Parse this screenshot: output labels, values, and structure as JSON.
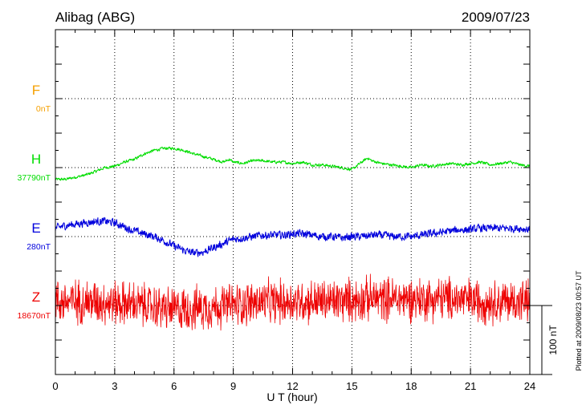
{
  "station": "Alibag (ABG)",
  "date": "2009/07/23",
  "plotted_note": "Plotted at 2009/08/23 00:57 UT",
  "scale_label": "100 nT",
  "chart_data": {
    "type": "line",
    "title": "Alibag (ABG)",
    "subtitle": "2009/07/23",
    "xlabel": "U T (hour)",
    "ylabel": "",
    "xlim": [
      0,
      24
    ],
    "x_ticks": [
      "0",
      "3",
      "6",
      "9",
      "12",
      "15",
      "18",
      "21",
      "24"
    ],
    "units_per_division_nT": 100,
    "grid": true,
    "series": [
      {
        "name": "F",
        "baseline_label": "0nT",
        "color": "#f5a000",
        "x": [],
        "y": []
      },
      {
        "name": "H",
        "baseline_label": "37790nT",
        "color": "#00dd00",
        "noise": 3,
        "x": [
          0,
          0.5,
          1,
          1.5,
          2,
          2.5,
          3,
          3.5,
          4,
          4.5,
          5,
          5.5,
          6,
          6.5,
          7,
          7.5,
          8,
          8.5,
          8.8,
          9,
          9.5,
          10,
          10.5,
          11,
          11.5,
          12,
          12.5,
          13,
          13.5,
          14,
          14.5,
          15,
          15.5,
          15.8,
          16,
          16.5,
          17,
          17.5,
          18,
          18.5,
          19,
          19.5,
          20,
          20.5,
          21,
          21.5,
          22,
          22.5,
          23,
          23.5,
          24
        ],
        "y": [
          -17,
          -17,
          -14,
          -11,
          -6,
          0,
          2,
          8,
          12,
          20,
          25,
          28,
          28,
          25,
          20,
          16,
          12,
          8,
          12,
          8,
          6,
          10,
          10,
          8,
          8,
          6,
          8,
          4,
          4,
          2,
          0,
          -3,
          8,
          14,
          10,
          6,
          4,
          2,
          0,
          4,
          2,
          4,
          6,
          4,
          6,
          8,
          4,
          6,
          8,
          4,
          2
        ]
      },
      {
        "name": "E",
        "baseline_label": "280nT",
        "color": "#0000dd",
        "noise": 8,
        "x": [
          0,
          0.5,
          1,
          1.5,
          2,
          2.5,
          3,
          3.5,
          4,
          4.5,
          5,
          5.5,
          6,
          6.5,
          7,
          7.5,
          8,
          8.5,
          9,
          9.5,
          10,
          10.5,
          11,
          11.5,
          12,
          12.5,
          13,
          13.5,
          14,
          14.5,
          15,
          15.5,
          16,
          16.5,
          17,
          17.5,
          18,
          18.5,
          19,
          19.5,
          20,
          20.5,
          21,
          21.5,
          22,
          22.5,
          23,
          23.5,
          24
        ],
        "y": [
          12,
          16,
          18,
          20,
          22,
          22,
          20,
          14,
          8,
          4,
          0,
          -6,
          -14,
          -20,
          -24,
          -22,
          -16,
          -10,
          -4,
          -2,
          0,
          2,
          2,
          2,
          4,
          4,
          2,
          0,
          0,
          -2,
          0,
          0,
          2,
          2,
          0,
          0,
          0,
          2,
          4,
          6,
          8,
          10,
          10,
          12,
          12,
          12,
          12,
          12,
          10
        ]
      },
      {
        "name": "Z",
        "baseline_label": "18670nT",
        "color": "#ee0000",
        "noise": 30,
        "x": [
          0,
          2,
          4,
          6,
          8,
          10,
          12,
          14,
          16,
          18,
          20,
          22,
          24
        ],
        "y": [
          6,
          6,
          2,
          -6,
          -2,
          4,
          6,
          6,
          10,
          10,
          10,
          6,
          6
        ]
      }
    ]
  }
}
